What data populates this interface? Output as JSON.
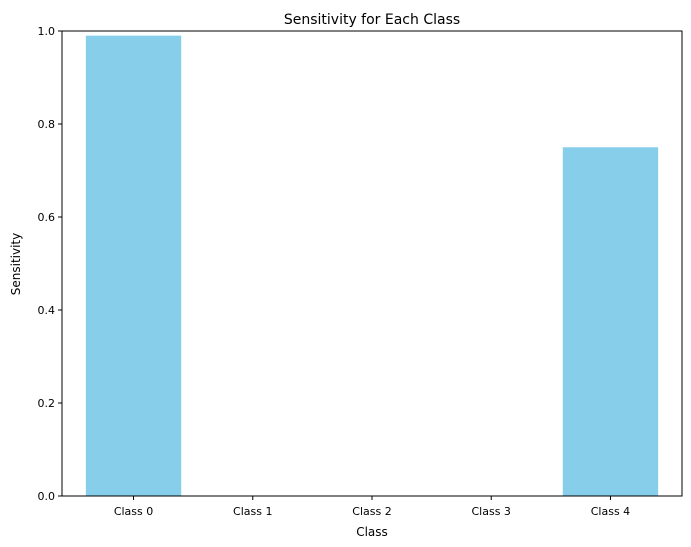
{
  "chart_data": {
    "type": "bar",
    "title": "Sensitivity for Each Class",
    "xlabel": "Class",
    "ylabel": "Sensitivity",
    "categories": [
      "Class 0",
      "Class 1",
      "Class 2",
      "Class 3",
      "Class 4"
    ],
    "values": [
      0.99,
      0.0,
      0.0,
      0.0,
      0.75
    ],
    "ylim": [
      0,
      1.0
    ],
    "yticks": [
      0.0,
      0.2,
      0.4,
      0.6,
      0.8,
      1.0
    ],
    "ytick_labels": [
      "0.0",
      "0.2",
      "0.4",
      "0.6",
      "0.8",
      "1.0"
    ],
    "grid": false,
    "colors": {
      "bar": "#87ceeb",
      "axis": "#000000",
      "background": "#ffffff"
    }
  }
}
